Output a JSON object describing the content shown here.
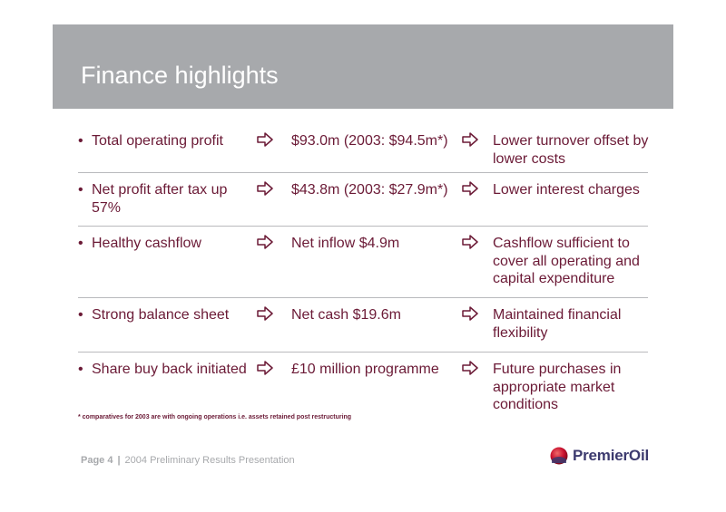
{
  "header": {
    "title": "Finance highlights"
  },
  "rows": [
    {
      "label": "Total operating profit",
      "value": "$93.0m (2003: $94.5m*)",
      "comment": "Lower turnover offset by lower costs"
    },
    {
      "label": "Net profit after tax up 57%",
      "value": "$43.8m (2003: $27.9m*)",
      "comment": "Lower interest charges"
    },
    {
      "label": "Healthy cashflow",
      "value": "Net inflow $4.9m",
      "comment": "Cashflow sufficient to cover all operating and capital expenditure"
    },
    {
      "label": "Strong balance sheet",
      "value": "Net cash $19.6m",
      "comment": "Maintained financial flexibility"
    },
    {
      "label": "Share buy back initiated",
      "value": "£10 million programme",
      "comment": "Future purchases in appropriate market conditions"
    }
  ],
  "bullet": "•",
  "footnote": "* comparatives for 2003 are with ongoing operations i.e. assets retained post restructuring",
  "footer": {
    "page": "Page 4",
    "separator": "|",
    "presentation": "2004 Preliminary Results Presentation"
  },
  "logo": {
    "name": "PremierOil"
  },
  "colors": {
    "header_band": "#a7a9ac",
    "text": "#6b1a36",
    "arrow": "#6b1a36",
    "logo_text": "#3c3a6e",
    "logo_mark": "#c8102e"
  },
  "icons": {
    "arrow": "hollow-right-arrow-icon"
  }
}
